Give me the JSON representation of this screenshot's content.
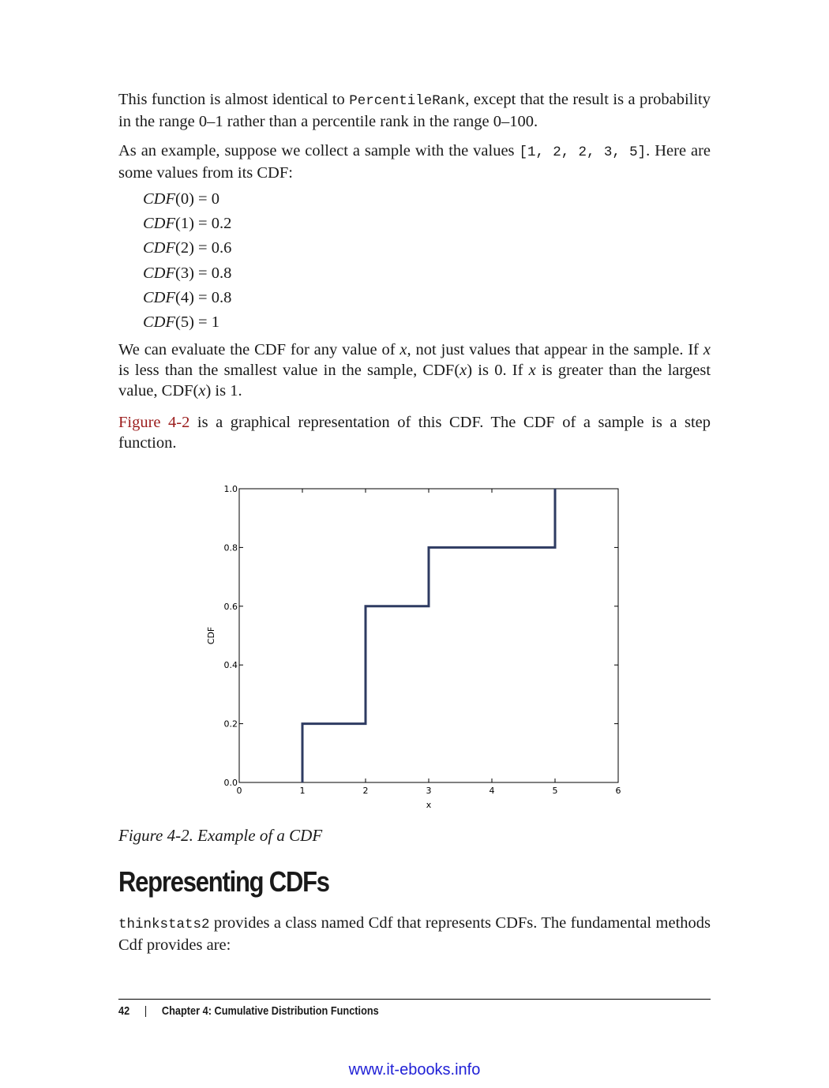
{
  "para1": {
    "before": "This function is almost identical to ",
    "code": "PercentileRank",
    "after": ", except that the result is a probability in the range 0–1 rather than a percentile rank in the range 0–100."
  },
  "para2": {
    "before": "As an example, suppose we collect a sample with the values ",
    "code": "[1, 2, 2, 3, 5]",
    "after": ". Here are some values from its CDF:"
  },
  "cdf_values": [
    {
      "fn": "CDF",
      "arg": "(0)",
      "rhs": " = 0"
    },
    {
      "fn": "CDF",
      "arg": "(1)",
      "rhs": " = 0.2"
    },
    {
      "fn": "CDF",
      "arg": "(2)",
      "rhs": " = 0.6"
    },
    {
      "fn": "CDF",
      "arg": "(3)",
      "rhs": " = 0.8"
    },
    {
      "fn": "CDF",
      "arg": "(4)",
      "rhs": " = 0.8"
    },
    {
      "fn": "CDF",
      "arg": "(5)",
      "rhs": " = 1"
    }
  ],
  "para3": {
    "t1": "We can evaluate the CDF for any value of ",
    "x1": "x",
    "t2": ", not just values that appear in the sample. If ",
    "x2": "x",
    "t3": " is less than the smallest value in the sample, CDF(",
    "x3": "x",
    "t4": ") is 0. If ",
    "x4": "x",
    "t5": " is greater than the largest value, CDF(",
    "x5": "x",
    "t6": ") is 1."
  },
  "para4": {
    "link": "Figure 4-2",
    "after": " is a graphical representation of this CDF. The CDF of a sample is a step function."
  },
  "chart_data": {
    "type": "line",
    "step": true,
    "x": [
      1,
      1,
      2,
      2,
      3,
      3,
      5,
      5
    ],
    "y": [
      0.0,
      0.2,
      0.2,
      0.6,
      0.6,
      0.8,
      0.8,
      1.0
    ],
    "xlabel": "x",
    "ylabel": "CDF",
    "xlim": [
      0,
      6
    ],
    "ylim": [
      0.0,
      1.0
    ],
    "xticks": [
      "0",
      "1",
      "2",
      "3",
      "4",
      "5",
      "6"
    ],
    "yticks": [
      "0.0",
      "0.2",
      "0.4",
      "0.6",
      "0.8",
      "1.0"
    ],
    "grid": false,
    "line_color": "#2e3b62"
  },
  "caption": "Figure 4-2. Example of a CDF",
  "heading": "Representing CDFs",
  "para5": {
    "code": "thinkstats2",
    "after": " provides a class named Cdf that represents CDFs. The fundamental methods Cdf provides are:"
  },
  "footer": {
    "page": "42",
    "separator": "|",
    "chapter": "Chapter 4: Cumulative Distribution Functions"
  },
  "watermark": "www.it-ebooks.info"
}
